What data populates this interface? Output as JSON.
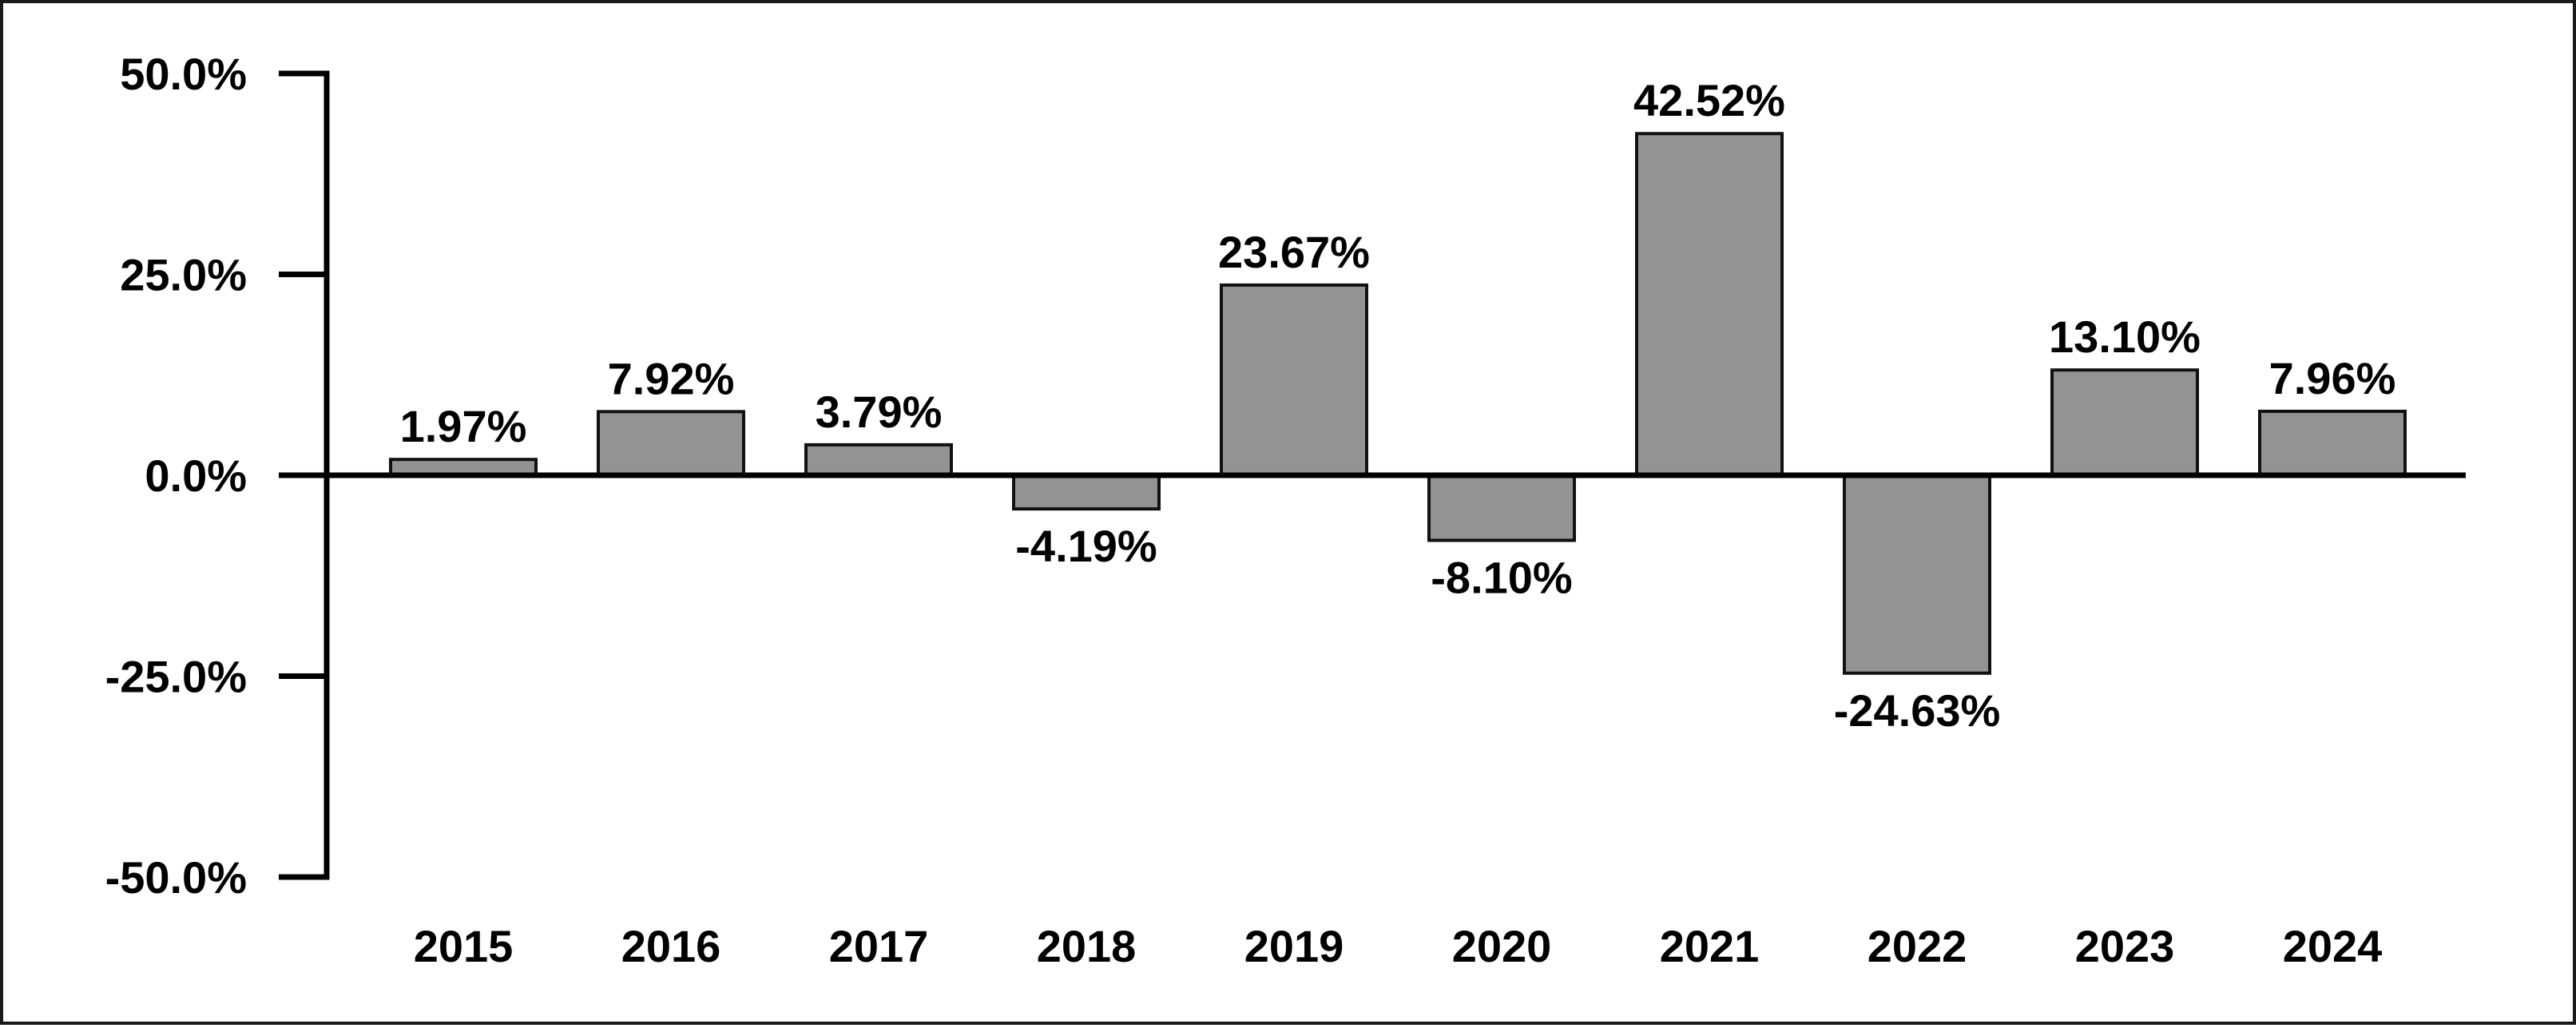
{
  "chart_data": {
    "type": "bar",
    "title": "",
    "xlabel": "",
    "ylabel": "",
    "categories": [
      "2015",
      "2016",
      "2017",
      "2018",
      "2019",
      "2020",
      "2021",
      "2022",
      "2023",
      "2024"
    ],
    "values": [
      1.97,
      7.92,
      3.79,
      -4.19,
      23.67,
      -8.1,
      42.52,
      -24.63,
      13.1,
      7.96
    ],
    "data_labels": [
      "1.97%",
      "7.92%",
      "3.79%",
      "-4.19%",
      "23.67%",
      "-8.10%",
      "42.52%",
      "-24.63%",
      "13.10%",
      "7.96%"
    ],
    "ylim": [
      -50,
      50
    ],
    "yticks": [
      50,
      25,
      0,
      -25,
      -50
    ],
    "ytick_labels": [
      "50.0%",
      "25.0%",
      "0.0%",
      "-25.0%",
      "-50.0%"
    ],
    "grid": false,
    "legend": "none",
    "bar_color": "#939393",
    "bar_edge_color": "#111111"
  }
}
